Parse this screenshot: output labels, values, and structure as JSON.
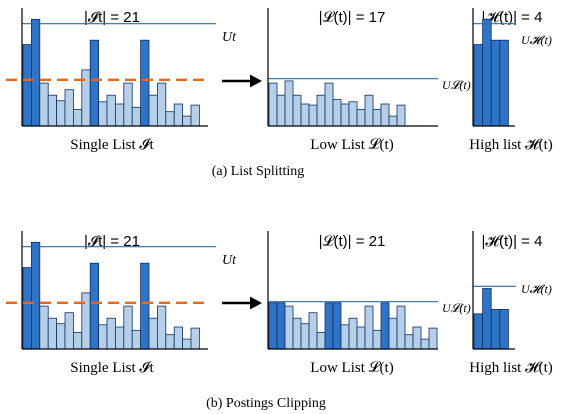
{
  "colors": {
    "dark": "#2f74c7",
    "light": "#b6cfe9",
    "bar_stroke": "#0d2f66",
    "threshold": "#2a6cb0",
    "cut": "#e8671b",
    "arrow": "#000000"
  },
  "rows": [
    {
      "caption": "(a) List Splitting",
      "single": {
        "title": "|𝓘t| = 21",
        "label": "Single List 𝓘t",
        "threshold_label": "Ut",
        "bars": [
          {
            "v": 0.74,
            "t": "d"
          },
          {
            "v": 0.97,
            "t": "d"
          },
          {
            "v": 0.39,
            "t": "l"
          },
          {
            "v": 0.28,
            "t": "l"
          },
          {
            "v": 0.23,
            "t": "l"
          },
          {
            "v": 0.33,
            "t": "l"
          },
          {
            "v": 0.15,
            "t": "l"
          },
          {
            "v": 0.51,
            "t": "l"
          },
          {
            "v": 0.78,
            "t": "d"
          },
          {
            "v": 0.22,
            "t": "l"
          },
          {
            "v": 0.28,
            "t": "l"
          },
          {
            "v": 0.2,
            "t": "l"
          },
          {
            "v": 0.39,
            "t": "l"
          },
          {
            "v": 0.17,
            "t": "l"
          },
          {
            "v": 0.78,
            "t": "d"
          },
          {
            "v": 0.28,
            "t": "l"
          },
          {
            "v": 0.39,
            "t": "l"
          },
          {
            "v": 0.13,
            "t": "l"
          },
          {
            "v": 0.2,
            "t": "l"
          },
          {
            "v": 0.09,
            "t": "l"
          },
          {
            "v": 0.19,
            "t": "l"
          }
        ],
        "threshold": 0.93,
        "cut": 0.42
      },
      "low": {
        "title": "|𝓛(t)| = 17",
        "label": "Low List 𝓛(t)",
        "threshold_label": "U𝓛(t)",
        "bars": [
          {
            "v": 0.39,
            "t": "l"
          },
          {
            "v": 0.28,
            "t": "l"
          },
          {
            "v": 0.41,
            "t": "l"
          },
          {
            "v": 0.28,
            "t": "l"
          },
          {
            "v": 0.2,
            "t": "l"
          },
          {
            "v": 0.19,
            "t": "l"
          },
          {
            "v": 0.28,
            "t": "l"
          },
          {
            "v": 0.39,
            "t": "l"
          },
          {
            "v": 0.24,
            "t": "l"
          },
          {
            "v": 0.2,
            "t": "l"
          },
          {
            "v": 0.22,
            "t": "l"
          },
          {
            "v": 0.15,
            "t": "l"
          },
          {
            "v": 0.28,
            "t": "l"
          },
          {
            "v": 0.15,
            "t": "l"
          },
          {
            "v": 0.2,
            "t": "l"
          },
          {
            "v": 0.09,
            "t": "l"
          },
          {
            "v": 0.19,
            "t": "l"
          }
        ],
        "threshold": 0.43
      },
      "high": {
        "title": "|𝓗(t)| = 4",
        "label": "High list 𝓗(t)",
        "threshold_label": "U𝓗(t)",
        "bars": [
          {
            "v": 0.74,
            "t": "d"
          },
          {
            "v": 0.97,
            "t": "d"
          },
          {
            "v": 0.78,
            "t": "d"
          },
          {
            "v": 0.78,
            "t": "d"
          }
        ],
        "threshold": 0.93
      }
    },
    {
      "caption": "(b) Postings Clipping",
      "single": {
        "title": "|𝓘t| = 21",
        "label": "Single List 𝓘t",
        "threshold_label": "Ut",
        "bars": [
          {
            "v": 0.74,
            "t": "d"
          },
          {
            "v": 0.97,
            "t": "d"
          },
          {
            "v": 0.39,
            "t": "l"
          },
          {
            "v": 0.28,
            "t": "l"
          },
          {
            "v": 0.23,
            "t": "l"
          },
          {
            "v": 0.33,
            "t": "l"
          },
          {
            "v": 0.15,
            "t": "l"
          },
          {
            "v": 0.51,
            "t": "l"
          },
          {
            "v": 0.78,
            "t": "d"
          },
          {
            "v": 0.22,
            "t": "l"
          },
          {
            "v": 0.28,
            "t": "l"
          },
          {
            "v": 0.2,
            "t": "l"
          },
          {
            "v": 0.39,
            "t": "l"
          },
          {
            "v": 0.17,
            "t": "l"
          },
          {
            "v": 0.78,
            "t": "d"
          },
          {
            "v": 0.28,
            "t": "l"
          },
          {
            "v": 0.39,
            "t": "l"
          },
          {
            "v": 0.13,
            "t": "l"
          },
          {
            "v": 0.2,
            "t": "l"
          },
          {
            "v": 0.09,
            "t": "l"
          },
          {
            "v": 0.19,
            "t": "l"
          }
        ],
        "threshold": 0.93,
        "cut": 0.42
      },
      "low": {
        "title": "|𝓛(t)| = 21",
        "label": "Low List 𝓛(t)",
        "threshold_label": "U𝓛(t)",
        "bars": [
          {
            "v": 0.42,
            "t": "d"
          },
          {
            "v": 0.42,
            "t": "d"
          },
          {
            "v": 0.39,
            "t": "l"
          },
          {
            "v": 0.28,
            "t": "l"
          },
          {
            "v": 0.23,
            "t": "l"
          },
          {
            "v": 0.33,
            "t": "l"
          },
          {
            "v": 0.15,
            "t": "l"
          },
          {
            "v": 0.42,
            "t": "d"
          },
          {
            "v": 0.42,
            "t": "d"
          },
          {
            "v": 0.22,
            "t": "l"
          },
          {
            "v": 0.28,
            "t": "l"
          },
          {
            "v": 0.2,
            "t": "l"
          },
          {
            "v": 0.39,
            "t": "l"
          },
          {
            "v": 0.17,
            "t": "l"
          },
          {
            "v": 0.42,
            "t": "d"
          },
          {
            "v": 0.28,
            "t": "l"
          },
          {
            "v": 0.39,
            "t": "l"
          },
          {
            "v": 0.13,
            "t": "l"
          },
          {
            "v": 0.2,
            "t": "l"
          },
          {
            "v": 0.09,
            "t": "l"
          },
          {
            "v": 0.19,
            "t": "l"
          }
        ],
        "threshold": 0.43
      },
      "high": {
        "title": "|𝓗(t)| = 4",
        "label": "High list 𝓗(t)",
        "threshold_label": "U𝓗(t)",
        "bars": [
          {
            "v": 0.32,
            "t": "d"
          },
          {
            "v": 0.55,
            "t": "d"
          },
          {
            "v": 0.36,
            "t": "d"
          },
          {
            "v": 0.36,
            "t": "d"
          }
        ],
        "threshold": 0.57
      }
    }
  ]
}
